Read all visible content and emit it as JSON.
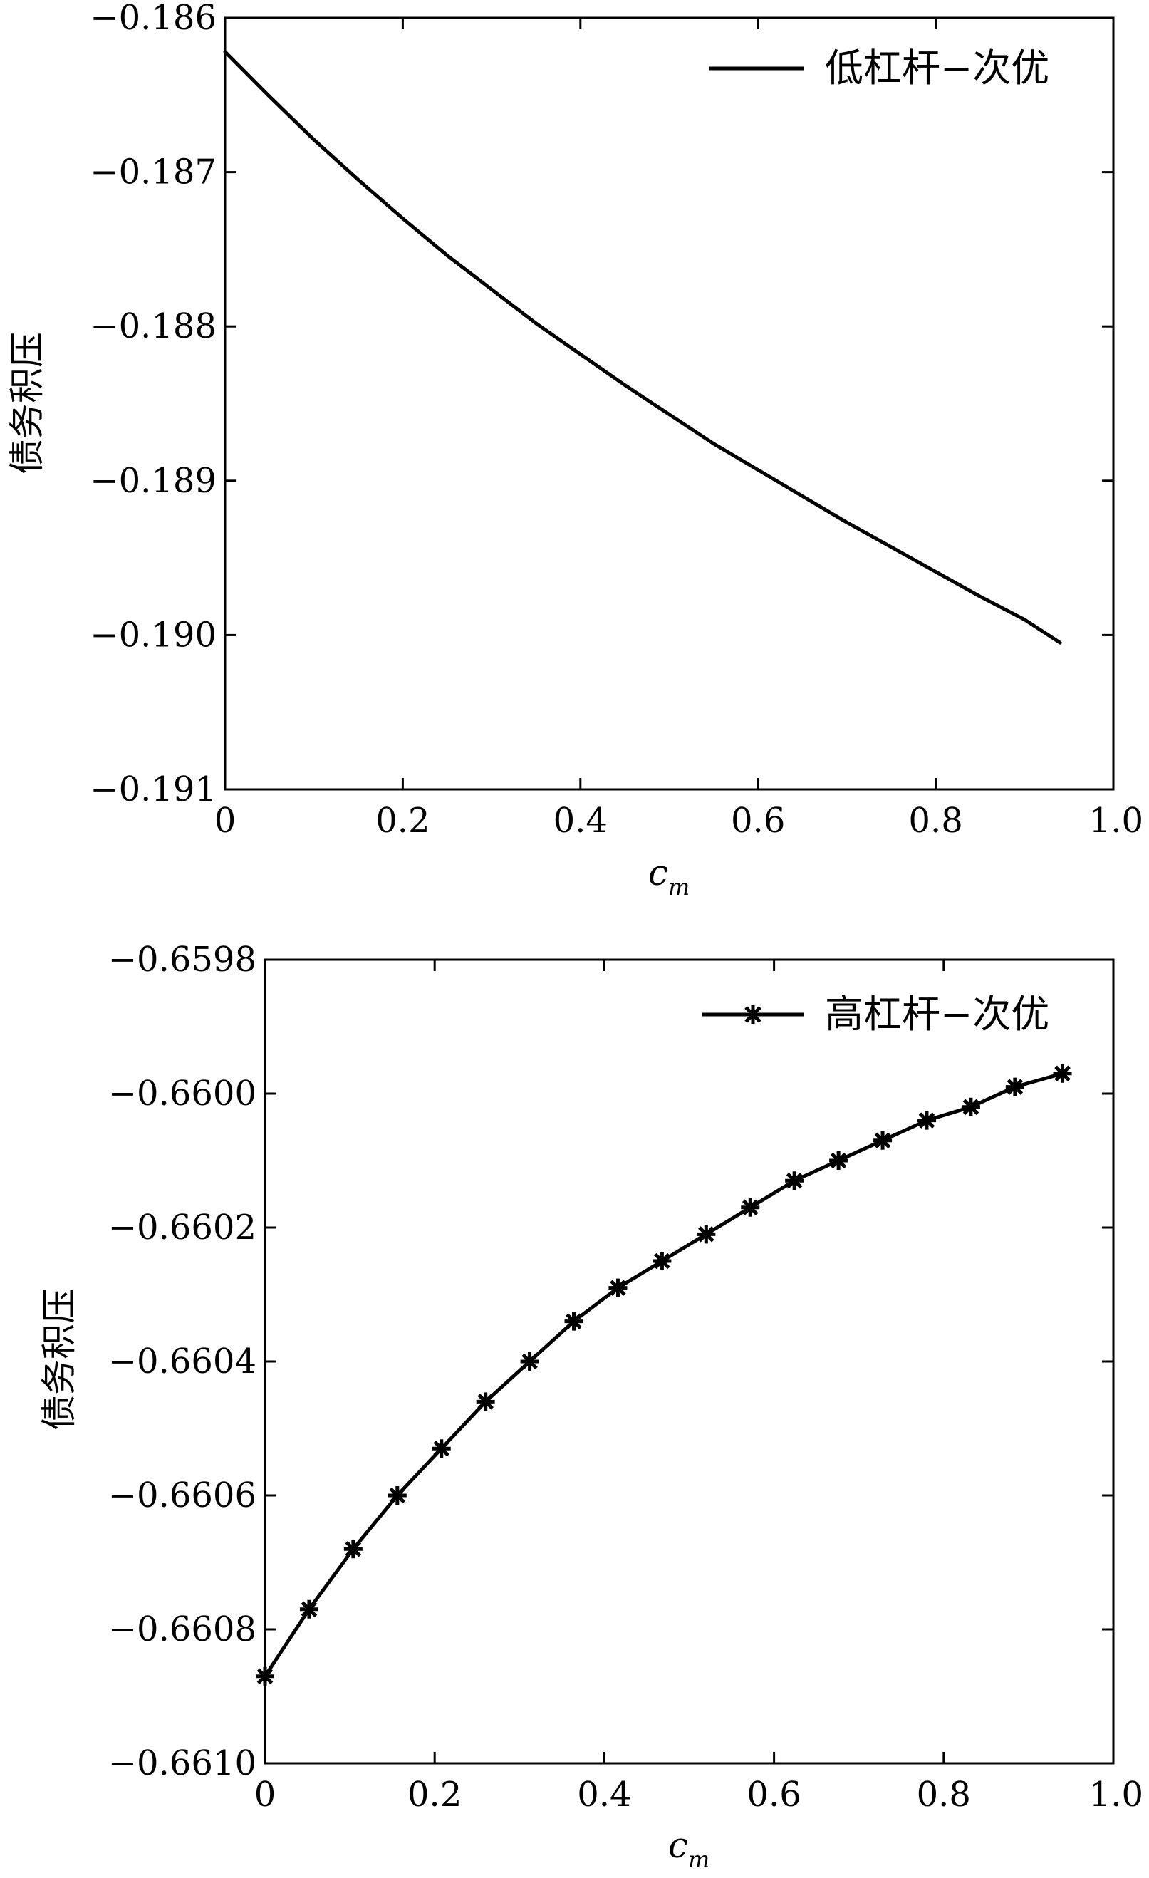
{
  "chart_data": [
    {
      "type": "line",
      "title": "",
      "xlabel": "c",
      "xlabel_sub": "m",
      "ylabel": "债务积压",
      "xlim": [
        0,
        1.0
      ],
      "ylim": [
        -0.191,
        -0.186
      ],
      "xticks": [
        "0",
        "0.2",
        "0.4",
        "0.6",
        "0.8",
        "1.0"
      ],
      "yticks": [
        "−0.186",
        "−0.187",
        "−0.188",
        "−0.189",
        "−0.190",
        "−0.191"
      ],
      "grid": false,
      "legend_position": "top-right",
      "series": [
        {
          "name": "低杠杆−次优",
          "marker": "none",
          "color": "#000000",
          "x": [
            0,
            0.05,
            0.1,
            0.15,
            0.2,
            0.25,
            0.3,
            0.35,
            0.4,
            0.45,
            0.5,
            0.55,
            0.6,
            0.65,
            0.7,
            0.75,
            0.8,
            0.85,
            0.9,
            0.94
          ],
          "y": [
            -0.18622,
            -0.18651,
            -0.18679,
            -0.18705,
            -0.1873,
            -0.18754,
            -0.18776,
            -0.18798,
            -0.18818,
            -0.18838,
            -0.18857,
            -0.18876,
            -0.18893,
            -0.1891,
            -0.18927,
            -0.18943,
            -0.18959,
            -0.18975,
            -0.1899,
            -0.19005
          ]
        }
      ]
    },
    {
      "type": "line",
      "title": "",
      "xlabel": "c",
      "xlabel_sub": "m",
      "ylabel": "债务积压",
      "xlim": [
        0,
        1.0
      ],
      "ylim": [
        -0.661,
        -0.6598
      ],
      "xticks": [
        "0",
        "0.2",
        "0.4",
        "0.6",
        "0.8",
        "1.0"
      ],
      "yticks": [
        "−0.6598",
        "−0.6600",
        "−0.6602",
        "−0.6604",
        "−0.6606",
        "−0.6608",
        "−0.6610"
      ],
      "grid": false,
      "legend_position": "top-right",
      "series": [
        {
          "name": "高杠杆−次优",
          "marker": "star",
          "color": "#000000",
          "x": [
            0,
            0.052,
            0.104,
            0.156,
            0.208,
            0.26,
            0.312,
            0.364,
            0.416,
            0.468,
            0.52,
            0.572,
            0.624,
            0.676,
            0.728,
            0.78,
            0.832,
            0.884,
            0.94
          ],
          "y": [
            -0.66087,
            -0.66077,
            -0.66068,
            -0.6606,
            -0.66053,
            -0.66046,
            -0.6604,
            -0.66034,
            -0.66029,
            -0.66025,
            -0.66021,
            -0.66017,
            -0.66013,
            -0.6601,
            -0.66007,
            -0.66004,
            -0.66002,
            -0.65999,
            -0.65997
          ]
        }
      ]
    }
  ]
}
